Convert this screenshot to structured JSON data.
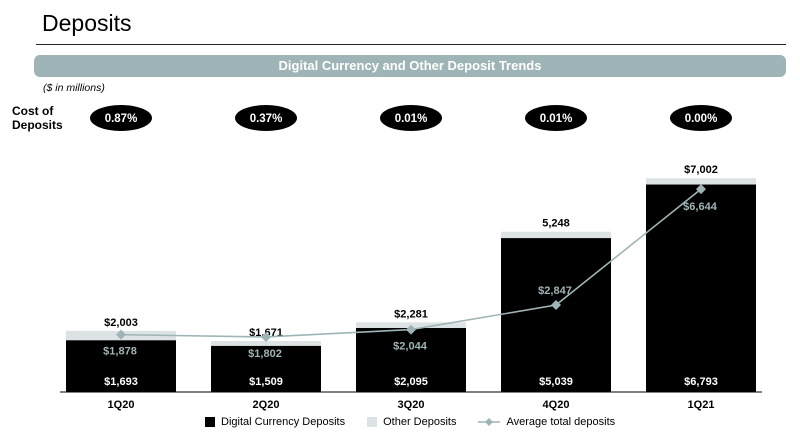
{
  "header": {
    "title": "Deposits",
    "banner": "Digital Currency and Other Deposit Trends",
    "units": "($ in millions)",
    "cost_label_line1": "Cost of",
    "cost_label_line2": "Deposits"
  },
  "colors": {
    "digital": "#000000",
    "other": "#dde3e4",
    "line": "#9fb4b6",
    "pill": "#000000"
  },
  "chart_data": {
    "type": "bar",
    "stacked": true,
    "categories": [
      "1Q20",
      "2Q20",
      "3Q20",
      "4Q20",
      "1Q21"
    ],
    "cost_of_deposits": [
      "0.87%",
      "0.37%",
      "0.01%",
      "0.01%",
      "0.00%"
    ],
    "series": [
      {
        "name": "Digital Currency Deposits",
        "values": [
          1693,
          1509,
          2095,
          5039,
          6793
        ],
        "labels": [
          "$1,693",
          "$1,509",
          "$2,095",
          "$5,039",
          "$6,793"
        ]
      },
      {
        "name": "Other Deposits",
        "values": [
          310,
          162,
          186,
          209,
          209
        ]
      }
    ],
    "totals": {
      "values": [
        2003,
        1671,
        2281,
        5248,
        7002
      ],
      "labels": [
        "$2,003",
        "$1,671",
        "$2,281",
        "5,248",
        "$7,002"
      ]
    },
    "line": {
      "name": "Average total deposits",
      "values": [
        1878,
        1802,
        2044,
        2847,
        6644
      ],
      "labels": [
        "$1,878",
        "$1,802",
        "$2,044",
        "$2,847",
        "$6,644"
      ]
    },
    "ylim": [
      0,
      7400
    ],
    "grid": false,
    "legend": "bottom"
  }
}
